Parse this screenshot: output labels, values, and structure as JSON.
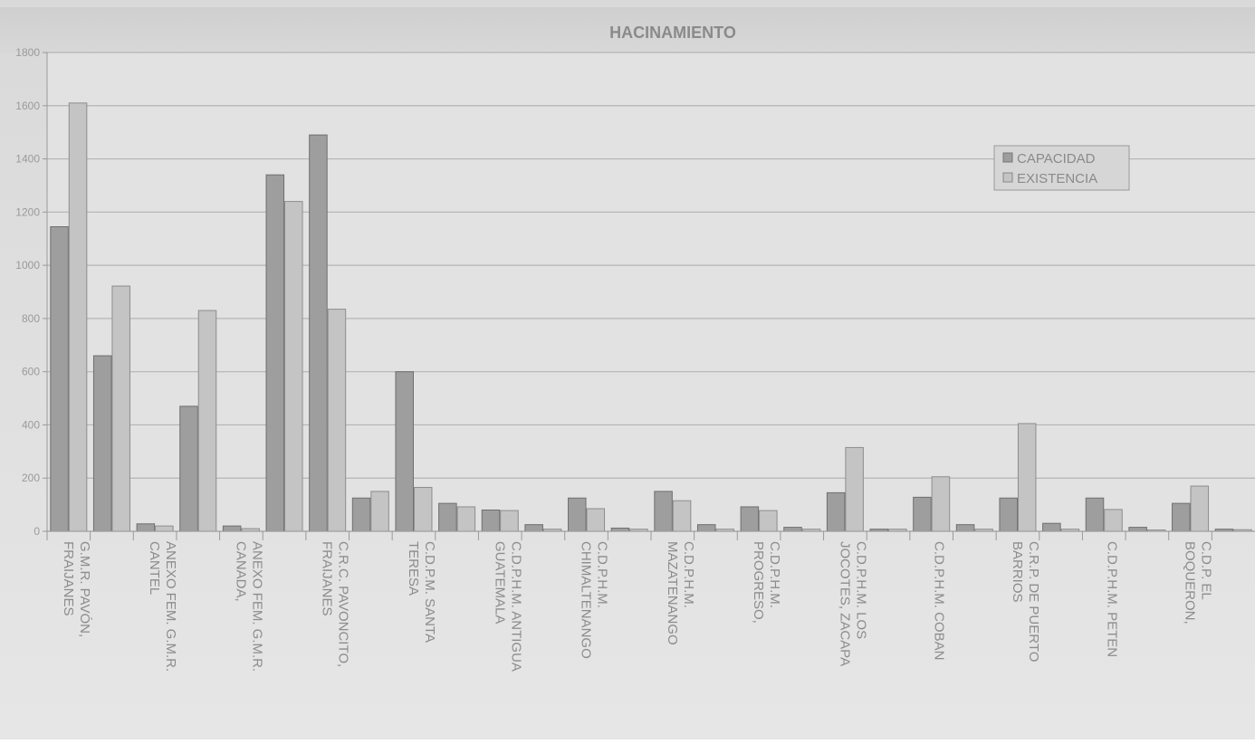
{
  "chart_data": {
    "type": "bar",
    "title": "HACINAMIENTO",
    "xlabel": "",
    "ylabel": "",
    "ylim": [
      0,
      1800
    ],
    "yticks": [
      0,
      200,
      400,
      600,
      800,
      1000,
      1200,
      1400,
      1600,
      1800
    ],
    "grid": true,
    "legend_position": "top-right",
    "categories": [
      "G.M.R. PAVÓN, FRAIJANES",
      "",
      "ANEXO FEM. G.M.R. CANTEL",
      "",
      "ANEXO FEM. G.M.R. CANADA,",
      "",
      "C.R.C. PAVONCITO, FRAIJANES",
      "",
      "C.D.P.M. SANTA TERESA",
      "",
      "C.D.P.H.M. ANTIGUA GUATEMALA",
      "",
      "C.D.P.H.M. CHIMALTENANGO",
      "",
      "C.D.P.H.M. MAZATENANGO",
      "",
      "C.D.P.H.M. PROGRESO,",
      "",
      "C.D.P.H.M. LOS JOCOTES, ZACAPA",
      "",
      "C.D.P.H.M. COBAN",
      "",
      "C.R.P. DE PUERTO BARRIOS",
      "",
      "C.D.P.H.M. PETEN",
      "",
      "C.D.P. EL BOQUERON,",
      ""
    ],
    "label_lines": [
      [
        "G.M.R. PAVÓN,",
        "FRAIJANES"
      ],
      [],
      [
        "ANEXO FEM. G.M.R.",
        "CANTEL"
      ],
      [],
      [
        "ANEXO FEM. G.M.R.",
        "CANADA,"
      ],
      [],
      [
        "C.R.C. PAVONCITO,",
        "FRAIJANES"
      ],
      [],
      [
        "C.D.P.M. SANTA",
        "TERESA"
      ],
      [],
      [
        "C.D.P.H.M. ANTIGUA",
        "GUATEMALA"
      ],
      [],
      [
        "C.D.P.H.M.",
        "CHIMALTENANGO"
      ],
      [],
      [
        "C.D.P.H.M.",
        "MAZATENANGO"
      ],
      [],
      [
        "C.D.P.H.M.",
        "PROGRESO,"
      ],
      [],
      [
        "C.D.P.H.M. LOS",
        "JOCOTES, ZACAPA"
      ],
      [],
      [
        "C.D.P.H.M. COBAN"
      ],
      [],
      [
        "C.R.P. DE PUERTO",
        "BARRIOS"
      ],
      [],
      [
        "C.D.P.H.M. PETEN"
      ],
      [],
      [
        "C.D.P. EL",
        "BOQUERON,"
      ],
      []
    ],
    "series": [
      {
        "name": "CAPACIDAD",
        "color": "#9e9e9e",
        "values": [
          1145,
          660,
          28,
          470,
          20,
          1340,
          1490,
          125,
          600,
          105,
          80,
          25,
          125,
          12,
          150,
          25,
          92,
          15,
          145,
          8,
          128,
          25,
          125,
          30,
          125,
          15,
          105,
          8
        ]
      },
      {
        "name": "EXISTENCIA",
        "color": "#c4c4c4",
        "values": [
          1610,
          922,
          20,
          830,
          10,
          1240,
          835,
          150,
          165,
          92,
          78,
          8,
          85,
          8,
          115,
          8,
          78,
          8,
          315,
          8,
          205,
          8,
          405,
          8,
          82,
          5,
          170,
          6
        ]
      }
    ]
  }
}
